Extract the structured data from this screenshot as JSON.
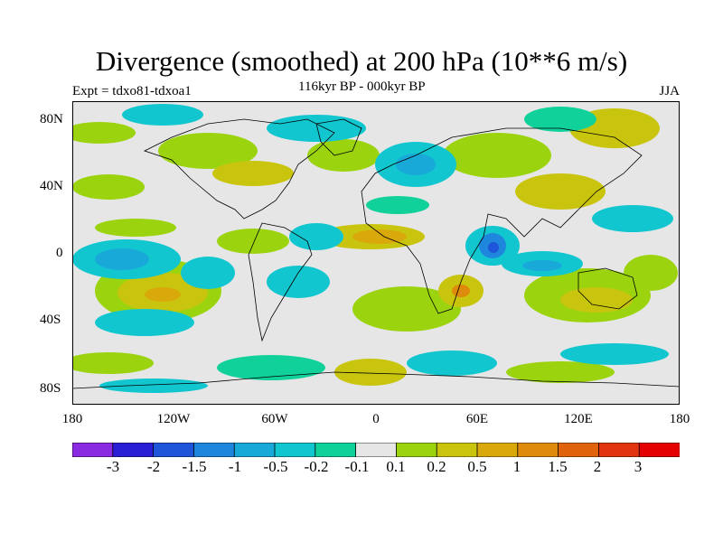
{
  "header": {
    "title": "Divergence (smoothed) at 200 hPa (10**6 m/s)",
    "subtitle": "116kyr BP - 000kyr BP",
    "experiment": "Expt = tdxo81-tdxoa1",
    "season": "JJA"
  },
  "axes": {
    "lat_ticks": [
      "80N",
      "40N",
      "0",
      "40S",
      "80S"
    ],
    "lon_ticks": [
      "180",
      "120W",
      "60W",
      "0",
      "60E",
      "120E",
      "180"
    ]
  },
  "colorbar": {
    "labels": [
      "-3",
      "-2",
      "-1.5",
      "-1",
      "-0.5",
      "-0.2",
      "-0.1",
      "0.1",
      "0.2",
      "0.5",
      "1",
      "1.5",
      "2",
      "3"
    ],
    "colors": [
      "#8a2be2",
      "#2b1fd6",
      "#1f55d8",
      "#1e86dc",
      "#18a9d8",
      "#12c6cf",
      "#11d19a",
      "#e6e6e6",
      "#9bd40f",
      "#c9c50e",
      "#d9a90c",
      "#de8a0b",
      "#e0630c",
      "#e2340f",
      "#e40000"
    ]
  },
  "colors": {
    "land_outline": "#000000",
    "neutral_field": "#e6e6e6"
  }
}
